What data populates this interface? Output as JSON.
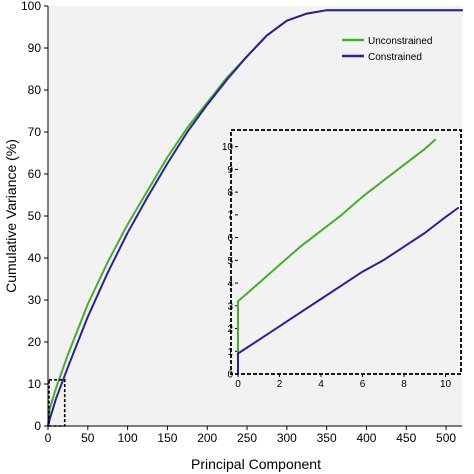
{
  "chart_data": [
    {
      "type": "line",
      "xlabel": "Principal Component",
      "ylabel": "Cumulative Variance (%)",
      "xlim": [
        0,
        520
      ],
      "ylim": [
        0,
        100
      ],
      "xticks": [
        0,
        50,
        100,
        150,
        200,
        250,
        300,
        350,
        400,
        450,
        500
      ],
      "yticks": [
        0,
        10,
        20,
        30,
        40,
        50,
        60,
        70,
        80,
        90,
        100
      ],
      "legend_position": "top-right",
      "background": "#f2f2f2",
      "series": [
        {
          "name": "Unconstrained",
          "color": "#44b02a",
          "x": [
            0,
            2,
            10,
            25,
            50,
            75,
            100,
            125,
            150,
            175,
            200,
            225,
            250,
            275,
            300,
            325,
            350,
            375,
            400,
            450,
            500,
            520
          ],
          "y": [
            0,
            4,
            9,
            17,
            29,
            39,
            48,
            56,
            64,
            71,
            77,
            83,
            88,
            93,
            96.5,
            98.2,
            99,
            99,
            99,
            99,
            99,
            99
          ]
        },
        {
          "name": "Constrained",
          "color": "#2b1f9a",
          "x": [
            0,
            2,
            10,
            25,
            50,
            75,
            100,
            125,
            150,
            175,
            200,
            225,
            250,
            275,
            300,
            325,
            350,
            375,
            400,
            450,
            500,
            520
          ],
          "y": [
            0,
            1.5,
            6.5,
            14,
            26,
            36.5,
            46,
            54.5,
            62.5,
            70,
            76.5,
            82.5,
            88,
            93,
            96.5,
            98.2,
            99,
            99,
            99,
            99,
            99,
            99
          ]
        }
      ],
      "zoom_box": {
        "xlim": [
          0,
          21
        ],
        "ylim": [
          0,
          11
        ]
      }
    },
    {
      "type": "line",
      "xlim": [
        0,
        10.6
      ],
      "ylim": [
        0,
        10.6
      ],
      "xticks": [
        0,
        2,
        4,
        6,
        8,
        10
      ],
      "yticks": [
        0,
        1,
        2,
        3,
        4,
        5,
        6,
        7,
        8,
        9,
        10
      ],
      "series": [
        {
          "name": "Unconstrained",
          "color": "#44b02a",
          "x": [
            0,
            0,
            0.5,
            1,
            2,
            3,
            4,
            5,
            6,
            7,
            8,
            9,
            9.5
          ],
          "y": [
            0,
            3.2,
            3.6,
            4.0,
            4.8,
            5.6,
            6.3,
            7.0,
            7.8,
            8.5,
            9.2,
            9.9,
            10.3
          ]
        },
        {
          "name": "Constrained",
          "color": "#2b1f9a",
          "x": [
            0,
            0,
            1,
            2,
            3,
            4,
            5,
            6,
            7,
            8,
            9,
            10,
            10.6
          ],
          "y": [
            0,
            0.9,
            1.5,
            2.1,
            2.7,
            3.3,
            3.9,
            4.5,
            5.0,
            5.6,
            6.2,
            6.9,
            7.3
          ]
        }
      ]
    }
  ]
}
